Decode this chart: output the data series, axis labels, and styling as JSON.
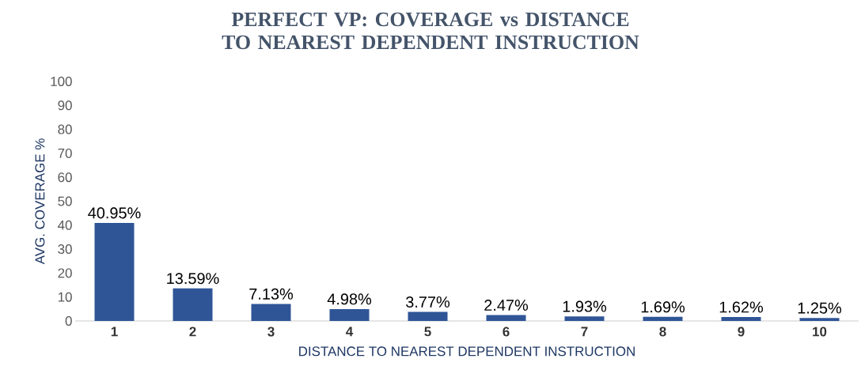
{
  "chart_data": {
    "type": "bar",
    "title": "PERFECT VP: COVERAGE vs DISTANCE TO NEAREST DEPENDENT INSTRUCTION",
    "xlabel": "DISTANCE TO NEAREST DEPENDENT INSTRUCTION",
    "ylabel": "AVG. COVERAGE %",
    "categories": [
      "1",
      "2",
      "3",
      "4",
      "5",
      "6",
      "7",
      "8",
      "9",
      "10"
    ],
    "values": [
      40.95,
      13.59,
      7.13,
      4.98,
      3.77,
      2.47,
      1.93,
      1.69,
      1.62,
      1.25
    ],
    "value_labels": [
      "40.95%",
      "13.59%",
      "7.13%",
      "4.98%",
      "3.77%",
      "2.47%",
      "1.93%",
      "1.69%",
      "1.62%",
      "1.25%"
    ],
    "color": "#2f5597",
    "ylim": [
      0,
      100
    ],
    "yticks": [
      0,
      10,
      20,
      30,
      40,
      50,
      60,
      70,
      80,
      90,
      100
    ],
    "grid": false
  }
}
